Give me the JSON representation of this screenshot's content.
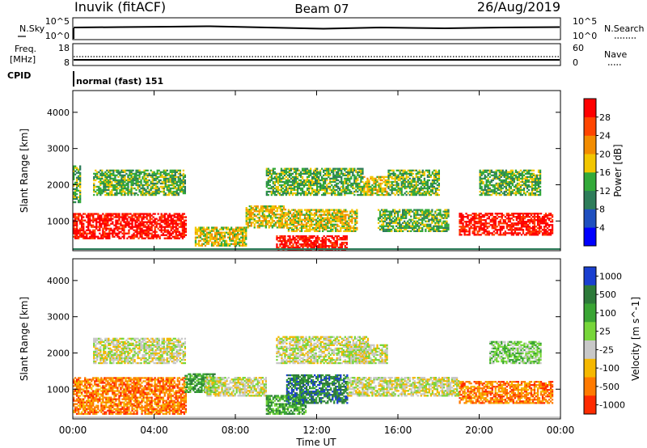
{
  "header": {
    "station": "Inuvik (fitACF)",
    "beam": "Beam 07",
    "date": "26/Aug/2019"
  },
  "status_panels": {
    "nsky": {
      "left_label": "N.Sky",
      "right_label": "N.Search",
      "left_ticks": [
        "10^5",
        "10^0"
      ],
      "right_ticks": [
        "10^5",
        "10^0"
      ]
    },
    "freq": {
      "left_label_1": "Freq.",
      "left_label_2": "[MHz]",
      "right_label": "Nave",
      "left_ticks": [
        "18",
        "8"
      ],
      "right_ticks": [
        "60",
        "0"
      ]
    },
    "cpid": {
      "label": "CPID",
      "value": "normal (fast) 151"
    }
  },
  "chart_data": [
    {
      "type": "heatmap",
      "name": "power",
      "ylabel": "Slant Range [km]",
      "ylim": [
        180,
        4600
      ],
      "yticks": [
        "1000",
        "2000",
        "3000",
        "4000"
      ],
      "colorbar": {
        "label": "Power [dB]",
        "ticks": [
          "4",
          "8",
          "12",
          "16",
          "20",
          "24",
          "28"
        ],
        "colors": [
          "#0000ff",
          "#1f4fbf",
          "#2e7d5a",
          "#33aa3a",
          "#f2c600",
          "#f28c00",
          "#ff4500",
          "#ff0000"
        ]
      },
      "regions": [
        {
          "t": [
            0.0,
            5.6
          ],
          "r": [
            500,
            1200
          ],
          "level": 7
        },
        {
          "t": [
            0.0,
            0.4
          ],
          "r": [
            1500,
            2500
          ],
          "level": 3
        },
        {
          "t": [
            1.0,
            5.5
          ],
          "r": [
            1700,
            2400
          ],
          "level": 3
        },
        {
          "t": [
            6.0,
            8.5
          ],
          "r": [
            300,
            800
          ],
          "level": 4
        },
        {
          "t": [
            8.5,
            10.5
          ],
          "r": [
            800,
            1400
          ],
          "level": 4
        },
        {
          "t": [
            10.0,
            13.5
          ],
          "r": [
            200,
            600
          ],
          "level": 7
        },
        {
          "t": [
            10.5,
            14.0
          ],
          "r": [
            700,
            1300
          ],
          "level": 4
        },
        {
          "t": [
            9.5,
            14.3
          ],
          "r": [
            1700,
            2450
          ],
          "level": 3
        },
        {
          "t": [
            14.3,
            15.5
          ],
          "r": [
            1700,
            2200
          ],
          "level": 4
        },
        {
          "t": [
            15.0,
            18.5
          ],
          "r": [
            700,
            1300
          ],
          "level": 3
        },
        {
          "t": [
            15.5,
            18.0
          ],
          "r": [
            1700,
            2400
          ],
          "level": 3
        },
        {
          "t": [
            19.0,
            23.6
          ],
          "r": [
            600,
            1200
          ],
          "level": 7
        },
        {
          "t": [
            20.0,
            23.0
          ],
          "r": [
            1700,
            2400
          ],
          "level": 3
        }
      ]
    },
    {
      "type": "heatmap",
      "name": "velocity",
      "xlabel": "Time UT",
      "ylabel": "Slant Range [km]",
      "xlim": [
        0,
        24
      ],
      "ylim": [
        180,
        4600
      ],
      "xticks": [
        "00:00",
        "04:00",
        "08:00",
        "12:00",
        "16:00",
        "20:00",
        "00:00"
      ],
      "yticks": [
        "1000",
        "2000",
        "3000",
        "4000"
      ],
      "colorbar": {
        "label": "Velocity [m s^-1]",
        "ticks": [
          "1000",
          "500",
          "100",
          "25",
          "-25",
          "-100",
          "-500",
          "-1000"
        ],
        "colors": [
          "#1a3fd0",
          "#2d7a3a",
          "#3aa534",
          "#77d63a",
          "#c8c8c8",
          "#f5b800",
          "#ff7a00",
          "#ff2b00"
        ]
      },
      "regions": [
        {
          "t": [
            0.0,
            5.6
          ],
          "r": [
            300,
            1300
          ],
          "level": 6
        },
        {
          "t": [
            1.0,
            5.5
          ],
          "r": [
            1700,
            2400
          ],
          "level": 4
        },
        {
          "t": [
            5.5,
            7.0
          ],
          "r": [
            900,
            1400
          ],
          "level": 2
        },
        {
          "t": [
            6.5,
            9.5
          ],
          "r": [
            800,
            1300
          ],
          "level": 4
        },
        {
          "t": [
            9.5,
            11.5
          ],
          "r": [
            300,
            800
          ],
          "level": 2
        },
        {
          "t": [
            10.0,
            14.5
          ],
          "r": [
            1700,
            2450
          ],
          "level": 4
        },
        {
          "t": [
            10.5,
            13.5
          ],
          "r": [
            600,
            1400
          ],
          "level": 1
        },
        {
          "t": [
            13.5,
            19.0
          ],
          "r": [
            800,
            1300
          ],
          "level": 4
        },
        {
          "t": [
            13.5,
            15.5
          ],
          "r": [
            1700,
            2200
          ],
          "level": 4
        },
        {
          "t": [
            19.0,
            23.6
          ],
          "r": [
            600,
            1200
          ],
          "level": 6
        },
        {
          "t": [
            20.5,
            23.0
          ],
          "r": [
            1700,
            2300
          ],
          "level": 3
        }
      ]
    }
  ]
}
